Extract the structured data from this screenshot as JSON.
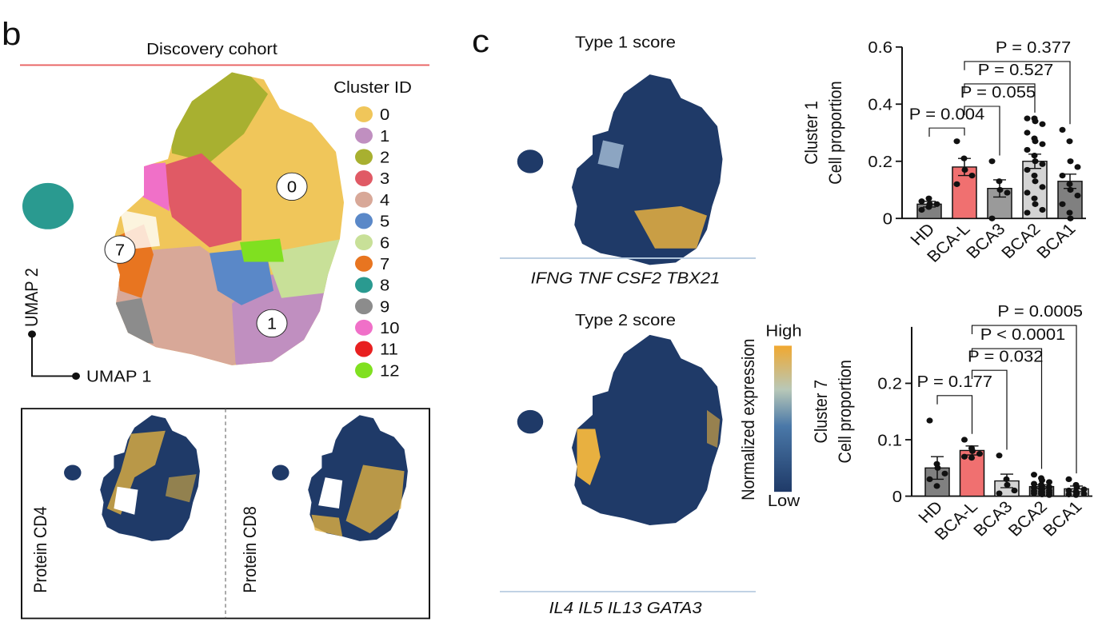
{
  "panel_b": {
    "letter": "b",
    "title": "Discovery cohort",
    "legend_title": "Cluster ID",
    "legend": [
      {
        "label": "0",
        "color": "#f0c65a"
      },
      {
        "label": "1",
        "color": "#c08fc0"
      },
      {
        "label": "2",
        "color": "#a8b030"
      },
      {
        "label": "3",
        "color": "#e05a65"
      },
      {
        "label": "4",
        "color": "#d8a898"
      },
      {
        "label": "5",
        "color": "#5a88c8"
      },
      {
        "label": "6",
        "color": "#c8e098"
      },
      {
        "label": "7",
        "color": "#e87520"
      },
      {
        "label": "8",
        "color": "#2a9a90"
      },
      {
        "label": "9",
        "color": "#8c8c8c"
      },
      {
        "label": "10",
        "color": "#f070c8"
      },
      {
        "label": "11",
        "color": "#e82020"
      },
      {
        "label": "12",
        "color": "#80e020"
      }
    ],
    "cluster_labels": [
      "0",
      "7",
      "1"
    ],
    "x_axis": "UMAP 1",
    "y_axis": "UMAP 2",
    "insets": [
      "Protein CD4",
      "Protein CD8"
    ]
  },
  "panel_c": {
    "letter": "c",
    "maps": [
      {
        "title": "Type 1 score",
        "genes": "IFNG TNF CSF2 TBX21"
      },
      {
        "title": "Type 2 score",
        "genes": "IL4 IL5 IL13 GATA3"
      }
    ],
    "colorbar": {
      "title": "Normalized expression",
      "high": "High",
      "low": "Low"
    }
  },
  "chart_data": [
    {
      "type": "bar",
      "ylabel": [
        "Cluster 1",
        "Cell proportion"
      ],
      "categories": [
        "HD",
        "BCA-L",
        "BCA3",
        "BCA2",
        "BCA1"
      ],
      "values": [
        0.05,
        0.18,
        0.105,
        0.2,
        0.13
      ],
      "errors": [
        0.01,
        0.03,
        0.03,
        0.025,
        0.025
      ],
      "colors": [
        "#808080",
        "#f07070",
        "#9a9a9a",
        "#d4d4d4",
        "#808080"
      ],
      "points": [
        [
          0.03,
          0.04,
          0.05,
          0.05,
          0.06,
          0.07
        ],
        [
          0.27,
          0.21,
          0.17,
          0.15,
          0.12
        ],
        [
          0.2,
          0.13,
          0.1,
          0.09,
          0.0
        ],
        [
          0.35,
          0.35,
          0.34,
          0.33,
          0.3,
          0.28,
          0.27,
          0.26,
          0.24,
          0.22,
          0.2,
          0.19,
          0.17,
          0.15,
          0.13,
          0.11,
          0.09,
          0.07,
          0.05,
          0.03,
          0.02
        ],
        [
          0.31,
          0.27,
          0.2,
          0.18,
          0.15,
          0.12,
          0.1,
          0.08,
          0.05,
          0.02,
          0.0
        ]
      ],
      "annotations": [
        "P = 0.004",
        "P = 0.055",
        "P = 0.527",
        "P = 0.377"
      ],
      "ylim": [
        0,
        0.6
      ],
      "yticks": [
        0,
        0.2,
        0.4,
        0.6
      ]
    },
    {
      "type": "bar",
      "ylabel": [
        "Cluster 7",
        "Cell proportion"
      ],
      "categories": [
        "HD",
        "BCA-L",
        "BCA3",
        "BCA2",
        "BCA1"
      ],
      "values": [
        0.05,
        0.081,
        0.027,
        0.017,
        0.013
      ],
      "errors": [
        0.02,
        0.008,
        0.012,
        0.003,
        0.005
      ],
      "colors": [
        "#808080",
        "#f07070",
        "#d4d4d4",
        "#808080",
        "#d4d4d4"
      ],
      "points": [
        [
          0.134,
          0.057,
          0.05,
          0.04,
          0.03,
          0.018
        ],
        [
          0.1,
          0.085,
          0.08,
          0.075,
          0.07,
          0.068
        ],
        [
          0.072,
          0.03,
          0.02,
          0.01,
          0.005
        ],
        [
          0.038,
          0.032,
          0.028,
          0.025,
          0.022,
          0.02,
          0.018,
          0.016,
          0.015,
          0.013,
          0.012,
          0.01,
          0.009,
          0.008,
          0.007,
          0.006,
          0.005,
          0.004,
          0.003,
          0.002
        ],
        [
          0.03,
          0.02,
          0.016,
          0.012,
          0.01,
          0.008,
          0.005,
          0.004,
          0.003,
          0.002
        ]
      ],
      "annotations": [
        "P = 0.177",
        "P = 0.032",
        "P < 0.0001",
        "P = 0.0005"
      ],
      "ylim": [
        0,
        0.3
      ],
      "yticks": [
        0,
        0.1,
        0.2
      ]
    }
  ]
}
